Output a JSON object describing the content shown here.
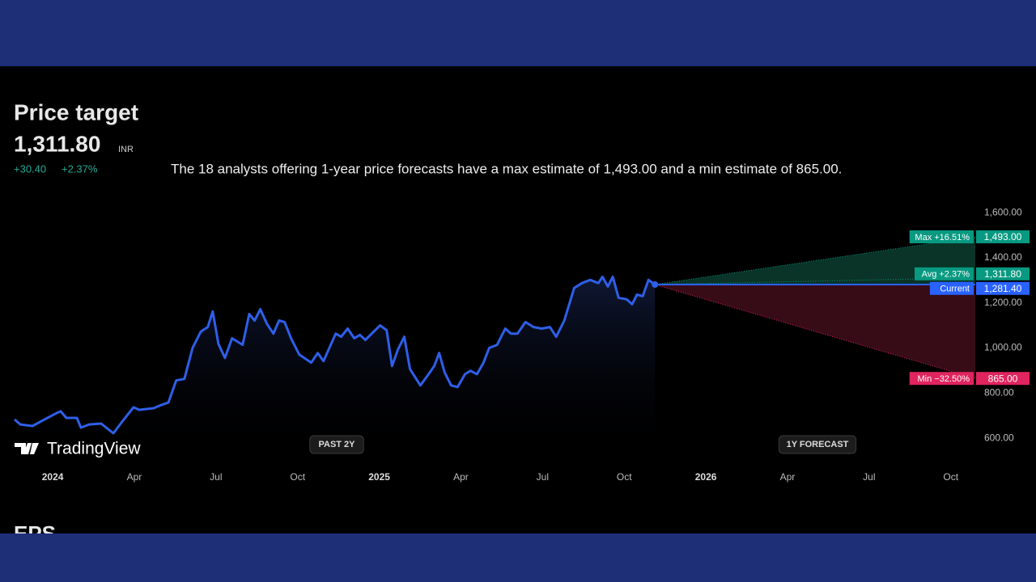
{
  "header": {
    "title": "Price target",
    "price": "1,311.80",
    "currency": "INR",
    "change": "+30.40",
    "change_percent": "+2.37%",
    "description": "The 18 analysts offering 1-year price forecasts have a max estimate of 1,493.00 and a min estimate of 865.00."
  },
  "chart_data": {
    "type": "line",
    "color": "#2f5fe8",
    "x": [
      -1.4,
      -1.19,
      -0.74,
      -0.3,
      0.15,
      0.3,
      0.5,
      0.89,
      1.04,
      1.34,
      1.78,
      2.23,
      2.52,
      2.97,
      3.18,
      3.71,
      4.01,
      4.25,
      4.54,
      4.84,
      5.14,
      5.44,
      5.7,
      5.88,
      6.09,
      6.33,
      6.59,
      6.98,
      7.22,
      7.42,
      7.63,
      7.87,
      8.11,
      8.32,
      8.52,
      8.76,
      9.06,
      9.5,
      9.74,
      9.95,
      10.4,
      10.6,
      10.84,
      11.08,
      11.29,
      11.49,
      12.03,
      12.27,
      12.47,
      12.68,
      12.92,
      13.13,
      13.51,
      13.81,
      14.02,
      14.2,
      14.4,
      14.64,
      14.88,
      15.15,
      15.35,
      15.59,
      15.83,
      16.04,
      16.33,
      16.63,
      16.84,
      17.08,
      17.37,
      17.67,
      17.97,
      18.27,
      18.5,
      18.8,
      19.16,
      19.45,
      19.75,
      20.05,
      20.2,
      20.4,
      20.58,
      20.79,
      21.09,
      21.29,
      21.47,
      21.68,
      21.89,
      22.13
    ],
    "values": [
      683,
      661,
      654,
      683,
      712,
      719,
      690,
      690,
      647,
      661,
      665,
      622,
      668,
      737,
      726,
      733,
      748,
      758,
      856,
      863,
      1000,
      1072,
      1093,
      1162,
      1018,
      956,
      1043,
      1014,
      1151,
      1122,
      1172,
      1108,
      1064,
      1122,
      1115,
      1043,
      971,
      935,
      978,
      942,
      1064,
      1050,
      1086,
      1043,
      1058,
      1036,
      1100,
      1079,
      920,
      992,
      1050,
      906,
      834,
      884,
      920,
      978,
      892,
      834,
      827,
      884,
      899,
      884,
      935,
      1000,
      1014,
      1086,
      1064,
      1064,
      1115,
      1093,
      1086,
      1093,
      1050,
      1122,
      1266,
      1288,
      1302,
      1288,
      1316,
      1273,
      1316,
      1223,
      1216,
      1194,
      1237,
      1230,
      1302,
      1281.4
    ],
    "xlim": [
      -1.4,
      33.9
    ],
    "xticks": [
      {
        "value": 0,
        "label": "2024"
      },
      {
        "value": 3,
        "label": "Apr"
      },
      {
        "value": 6,
        "label": "Jul"
      },
      {
        "value": 9,
        "label": "Oct"
      },
      {
        "value": 12,
        "label": "2025"
      },
      {
        "value": 15,
        "label": "Apr"
      },
      {
        "value": 18,
        "label": "Jul"
      },
      {
        "value": 21,
        "label": "Oct"
      },
      {
        "value": 24,
        "label": "2026"
      },
      {
        "value": 27,
        "label": "Apr"
      },
      {
        "value": 30,
        "label": "Jul"
      },
      {
        "value": 33,
        "label": "Oct"
      }
    ],
    "ylim": [
      500,
      1665
    ],
    "yticks": [
      {
        "value": 600,
        "label": "600.00"
      },
      {
        "value": 800,
        "label": "800.00"
      },
      {
        "value": 1000,
        "label": "1,000.00"
      },
      {
        "value": 1200,
        "label": "1,200.00"
      },
      {
        "value": 1400,
        "label": "1,400.00"
      },
      {
        "value": 1600,
        "label": "1,600.00"
      }
    ],
    "forecast": {
      "max": {
        "label": "Max +16.51%",
        "value": 1493,
        "value_label": "1,493.00",
        "color": "#089981"
      },
      "avg": {
        "label": "Avg +2.37%",
        "value": 1311.8,
        "value_label": "1,311.80",
        "color": "#089981"
      },
      "current": {
        "label": "Current",
        "value": 1281.4,
        "value_label": "1,281.40",
        "color": "#2962ff"
      },
      "min": {
        "label": "Min −32.50%",
        "value": 865,
        "value_label": "865.00",
        "color": "#e0245e"
      }
    },
    "past_label": "PAST 2Y",
    "forecast_label": "1Y FORECAST"
  },
  "watermark": "TradingView",
  "next_section": "EPS"
}
